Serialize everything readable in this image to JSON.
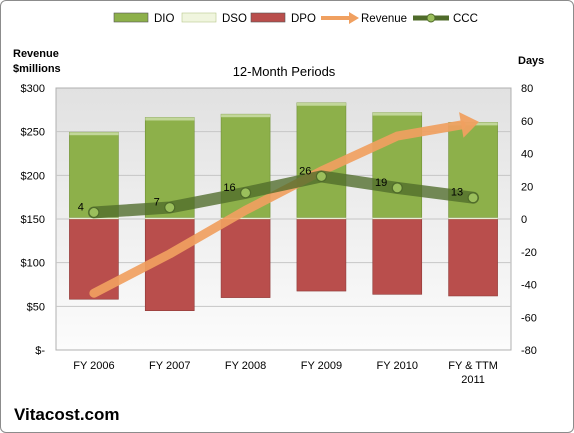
{
  "chart_data": {
    "type": "bar",
    "title": "12-Month Periods",
    "watermark": "Vitacost.com",
    "left_axis_title": [
      "Revenue",
      "$millions"
    ],
    "right_axis_title": "Days",
    "categories": [
      [
        "FY 2006"
      ],
      [
        "FY 2007"
      ],
      [
        "FY 2008"
      ],
      [
        "FY 2009"
      ],
      [
        "FY 2010"
      ],
      [
        "FY & TTM",
        "2011"
      ]
    ],
    "left_axis": {
      "min": 0,
      "max": 300,
      "ticks": [
        0,
        50,
        100,
        150,
        200,
        250,
        300
      ],
      "tick_labels": [
        "$-",
        "$50",
        "$100",
        "$150",
        "$200",
        "$250",
        "$300"
      ]
    },
    "right_axis": {
      "min": -80,
      "max": 80,
      "ticks": [
        -80,
        -60,
        -40,
        -20,
        0,
        20,
        40,
        60,
        80
      ],
      "tick_labels": [
        "-80",
        "-60",
        "-40",
        "-20",
        "0",
        "20",
        "40",
        "60",
        "80"
      ]
    },
    "legend": [
      {
        "name": "DIO",
        "kind": "bar",
        "color": "#8db04a"
      },
      {
        "name": "DSO",
        "kind": "bar",
        "color": "#f0f5de"
      },
      {
        "name": "DPO",
        "kind": "bar",
        "color": "#b94e4c"
      },
      {
        "name": "Revenue",
        "kind": "arrow",
        "color": "#f0a060"
      },
      {
        "name": "CCC",
        "kind": "line",
        "color": "#4f6b2a"
      }
    ],
    "series": [
      {
        "name": "DIO",
        "axis": "right",
        "values": [
          52,
          61,
          63,
          70,
          64,
          58
        ],
        "color": "#8db04a"
      },
      {
        "name": "DSO",
        "axis": "right",
        "values": [
          1,
          1,
          1,
          1,
          1,
          1
        ],
        "color": "#f0f5de"
      },
      {
        "name": "DPO",
        "axis": "right",
        "values": [
          -49,
          -56,
          -48,
          -44,
          -46,
          -47
        ],
        "color": "#b94e4c"
      },
      {
        "name": "Revenue",
        "axis": "left",
        "values": [
          65,
          110,
          160,
          205,
          245,
          260
        ],
        "color": "#f0a060"
      },
      {
        "name": "CCC",
        "axis": "right",
        "values": [
          4,
          7,
          16,
          26,
          19,
          13
        ],
        "labels": [
          "4",
          "7",
          "16",
          "26",
          "19",
          "13"
        ],
        "color": "#4f6b2a"
      }
    ],
    "grid": true
  }
}
